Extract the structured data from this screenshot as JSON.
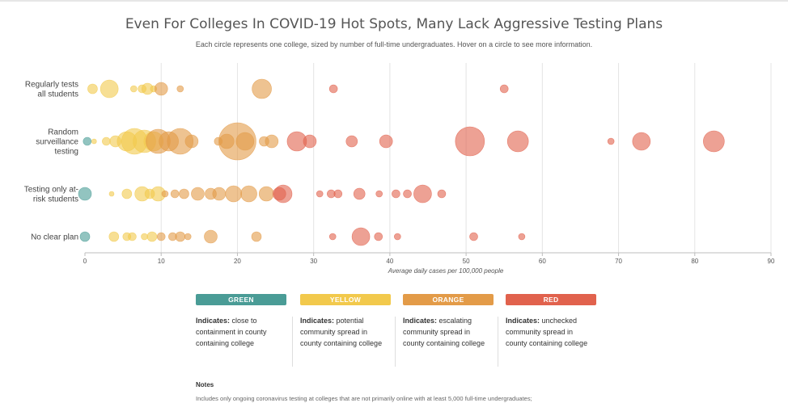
{
  "title": "Even For Colleges In COVID-19 Hot Spots, Many Lack Aggressive Testing Plans",
  "subtitle": "Each circle represents one college, sized by number of full-time undergraduates. Hover on a circle to see more information.",
  "colors": {
    "green": "#4a9c96",
    "yellow": "#f2c94c",
    "orange": "#e39b48",
    "red": "#e1624d",
    "grid": "#e4e4e4",
    "axis": "#bdbdbd"
  },
  "chart_data": {
    "type": "scatter",
    "xlabel": "Average daily cases per 100,000 people",
    "ylabel": "",
    "xlim": [
      0,
      90
    ],
    "xticks": [
      0,
      10,
      20,
      30,
      40,
      50,
      60,
      70,
      80,
      90
    ],
    "grid": true,
    "categories": [
      "Regularly tests all students",
      "Random surveillance testing",
      "Testing only at-risk students",
      "No clear plan"
    ],
    "category_labels": [
      [
        "Regularly tests",
        "all students"
      ],
      [
        "Random",
        "surveillance",
        "testing"
      ],
      [
        "Testing only at-",
        "risk students"
      ],
      [
        "No clear plan"
      ]
    ],
    "size_note": "circle size = number of full-time undergraduates",
    "series": [
      {
        "category": "Regularly tests all students",
        "points": [
          {
            "x": 1.0,
            "size": 6,
            "level": "yellow"
          },
          {
            "x": 3.2,
            "size": 11,
            "level": "yellow"
          },
          {
            "x": 6.4,
            "size": 4,
            "level": "yellow"
          },
          {
            "x": 7.5,
            "size": 5,
            "level": "yellow"
          },
          {
            "x": 8.2,
            "size": 7,
            "level": "yellow"
          },
          {
            "x": 9.0,
            "size": 4,
            "level": "yellow"
          },
          {
            "x": 10.0,
            "size": 8,
            "level": "orange"
          },
          {
            "x": 12.5,
            "size": 4,
            "level": "orange"
          },
          {
            "x": 23.2,
            "size": 12,
            "level": "orange"
          },
          {
            "x": 32.6,
            "size": 5,
            "level": "red"
          },
          {
            "x": 55.0,
            "size": 5,
            "level": "red"
          }
        ]
      },
      {
        "category": "Random surveillance testing",
        "points": [
          {
            "x": 0.3,
            "size": 5,
            "level": "green"
          },
          {
            "x": 1.2,
            "size": 3,
            "level": "yellow"
          },
          {
            "x": 2.8,
            "size": 5,
            "level": "yellow"
          },
          {
            "x": 4.0,
            "size": 7,
            "level": "yellow"
          },
          {
            "x": 5.5,
            "size": 12,
            "level": "yellow"
          },
          {
            "x": 6.5,
            "size": 16,
            "level": "yellow"
          },
          {
            "x": 7.8,
            "size": 14,
            "level": "yellow"
          },
          {
            "x": 9.0,
            "size": 12,
            "level": "yellow"
          },
          {
            "x": 9.6,
            "size": 15,
            "level": "orange"
          },
          {
            "x": 11.0,
            "size": 12,
            "level": "orange"
          },
          {
            "x": 12.5,
            "size": 16,
            "level": "orange"
          },
          {
            "x": 14.0,
            "size": 8,
            "level": "orange"
          },
          {
            "x": 17.5,
            "size": 5,
            "level": "orange"
          },
          {
            "x": 18.6,
            "size": 9,
            "level": "orange"
          },
          {
            "x": 20.0,
            "size": 23,
            "level": "orange"
          },
          {
            "x": 21.0,
            "size": 11,
            "level": "orange"
          },
          {
            "x": 23.5,
            "size": 6,
            "level": "orange"
          },
          {
            "x": 24.5,
            "size": 8,
            "level": "orange"
          },
          {
            "x": 27.8,
            "size": 12,
            "level": "red"
          },
          {
            "x": 29.5,
            "size": 8,
            "level": "red"
          },
          {
            "x": 35.0,
            "size": 7,
            "level": "red"
          },
          {
            "x": 39.5,
            "size": 8,
            "level": "red"
          },
          {
            "x": 50.5,
            "size": 18,
            "level": "red"
          },
          {
            "x": 56.8,
            "size": 13,
            "level": "red"
          },
          {
            "x": 69.0,
            "size": 4,
            "level": "red"
          },
          {
            "x": 73.0,
            "size": 11,
            "level": "red"
          },
          {
            "x": 82.5,
            "size": 13,
            "level": "red"
          }
        ]
      },
      {
        "category": "Testing only at-risk students",
        "points": [
          {
            "x": 0.0,
            "size": 8,
            "level": "green"
          },
          {
            "x": 3.5,
            "size": 3,
            "level": "yellow"
          },
          {
            "x": 5.5,
            "size": 6,
            "level": "yellow"
          },
          {
            "x": 7.5,
            "size": 9,
            "level": "yellow"
          },
          {
            "x": 8.5,
            "size": 6,
            "level": "yellow"
          },
          {
            "x": 9.6,
            "size": 9,
            "level": "yellow"
          },
          {
            "x": 10.5,
            "size": 4,
            "level": "orange"
          },
          {
            "x": 11.8,
            "size": 5,
            "level": "orange"
          },
          {
            "x": 13.0,
            "size": 6,
            "level": "orange"
          },
          {
            "x": 14.8,
            "size": 8,
            "level": "orange"
          },
          {
            "x": 16.5,
            "size": 7,
            "level": "orange"
          },
          {
            "x": 17.6,
            "size": 8,
            "level": "orange"
          },
          {
            "x": 19.5,
            "size": 10,
            "level": "orange"
          },
          {
            "x": 21.5,
            "size": 10,
            "level": "orange"
          },
          {
            "x": 23.8,
            "size": 9,
            "level": "orange"
          },
          {
            "x": 25.5,
            "size": 8,
            "level": "red"
          },
          {
            "x": 26.0,
            "size": 11,
            "level": "red"
          },
          {
            "x": 30.8,
            "size": 4,
            "level": "red"
          },
          {
            "x": 32.3,
            "size": 5,
            "level": "red"
          },
          {
            "x": 33.2,
            "size": 5,
            "level": "red"
          },
          {
            "x": 36.0,
            "size": 7,
            "level": "red"
          },
          {
            "x": 38.6,
            "size": 4,
            "level": "red"
          },
          {
            "x": 40.8,
            "size": 5,
            "level": "red"
          },
          {
            "x": 42.3,
            "size": 5,
            "level": "red"
          },
          {
            "x": 44.3,
            "size": 11,
            "level": "red"
          },
          {
            "x": 46.8,
            "size": 5,
            "level": "red"
          }
        ]
      },
      {
        "category": "No clear plan",
        "points": [
          {
            "x": 0.0,
            "size": 6,
            "level": "green"
          },
          {
            "x": 3.8,
            "size": 6,
            "level": "yellow"
          },
          {
            "x": 5.5,
            "size": 5,
            "level": "yellow"
          },
          {
            "x": 6.2,
            "size": 5,
            "level": "yellow"
          },
          {
            "x": 7.8,
            "size": 4,
            "level": "yellow"
          },
          {
            "x": 8.8,
            "size": 6,
            "level": "yellow"
          },
          {
            "x": 10.0,
            "size": 5,
            "level": "orange"
          },
          {
            "x": 11.5,
            "size": 5,
            "level": "orange"
          },
          {
            "x": 12.5,
            "size": 6,
            "level": "orange"
          },
          {
            "x": 13.5,
            "size": 4,
            "level": "orange"
          },
          {
            "x": 16.5,
            "size": 8,
            "level": "orange"
          },
          {
            "x": 22.5,
            "size": 6,
            "level": "orange"
          },
          {
            "x": 32.5,
            "size": 4,
            "level": "red"
          },
          {
            "x": 36.2,
            "size": 11,
            "level": "red"
          },
          {
            "x": 38.5,
            "size": 5,
            "level": "red"
          },
          {
            "x": 41.0,
            "size": 4,
            "level": "red"
          },
          {
            "x": 51.0,
            "size": 5,
            "level": "red"
          },
          {
            "x": 57.3,
            "size": 4,
            "level": "red"
          }
        ]
      }
    ]
  },
  "legend": [
    {
      "key": "green",
      "label": "GREEN",
      "prefix": "Indicates:",
      "text": "close to containment in county containing college"
    },
    {
      "key": "yellow",
      "label": "YELLOW",
      "prefix": "Indicates:",
      "text": "potential community spread in county containing college"
    },
    {
      "key": "orange",
      "label": "ORANGE",
      "prefix": "Indicates:",
      "text": "escalating community spread in county containing college"
    },
    {
      "key": "red",
      "label": "RED",
      "prefix": "Indicates:",
      "text": "unchecked community spread in county containing college"
    }
  ],
  "notes": {
    "heading": "Notes",
    "text": "Includes only ongoing coronavirus testing at colleges that are not primarily online with at least 5,000 full-time undergraduates;"
  }
}
